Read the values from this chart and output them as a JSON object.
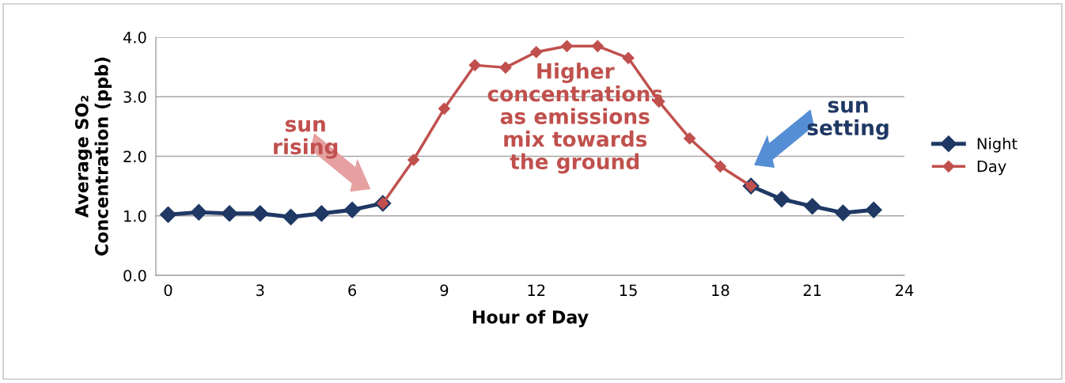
{
  "chart_data": {
    "type": "line",
    "xlabel": "Hour of Day",
    "ylabel": "Average SO₂\nConcentration (ppb)",
    "x": [
      0,
      1,
      2,
      3,
      4,
      5,
      6,
      7,
      8,
      9,
      10,
      11,
      12,
      13,
      14,
      15,
      16,
      17,
      18,
      19,
      20,
      21,
      22,
      23
    ],
    "series": [
      {
        "name": "Night",
        "color": "#1f3864",
        "values": [
          1.02,
          1.06,
          1.04,
          1.04,
          0.98,
          1.04,
          1.1,
          1.21,
          null,
          null,
          null,
          null,
          null,
          null,
          null,
          null,
          null,
          null,
          null,
          1.5,
          1.28,
          1.16,
          1.05,
          1.1
        ]
      },
      {
        "name": "Day",
        "color": "#c0504d",
        "values": [
          null,
          null,
          null,
          null,
          null,
          null,
          null,
          1.21,
          1.94,
          2.8,
          3.53,
          3.49,
          3.75,
          3.85,
          3.85,
          3.65,
          2.92,
          2.3,
          1.83,
          1.5,
          null,
          null,
          null,
          null
        ]
      }
    ],
    "xlim": [
      -0.4,
      24
    ],
    "xticks": [
      0,
      3,
      6,
      9,
      12,
      15,
      18,
      21,
      24
    ],
    "ylim": [
      0,
      4
    ],
    "yticks": [
      {
        "value": 0,
        "label": "0.0"
      },
      {
        "value": 1,
        "label": "1.0"
      },
      {
        "value": 2,
        "label": "2.0"
      },
      {
        "value": 3,
        "label": "3.0"
      },
      {
        "value": 4,
        "label": "4.0"
      }
    ],
    "grid": "y",
    "legend": "right",
    "marker": "diamond",
    "line_style": "solid",
    "annotations": [
      "sun\nrising",
      "Higher\nconcentrations\nas emissions\nmix towards\nthe ground",
      "sun\nsetting"
    ]
  }
}
